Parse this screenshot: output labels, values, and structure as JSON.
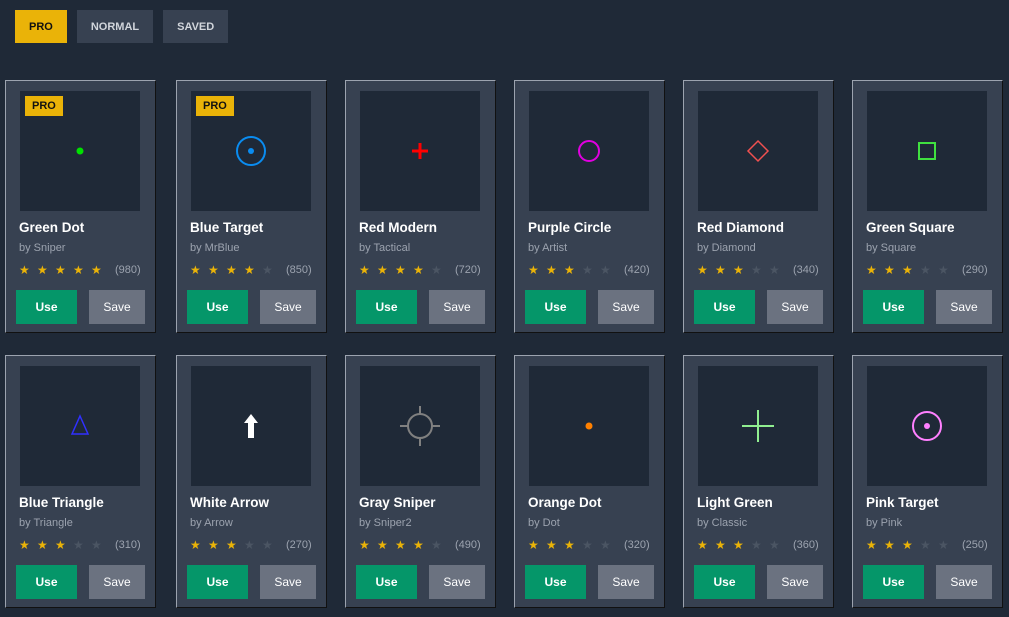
{
  "tabs": [
    {
      "label": "PRO",
      "active": true
    },
    {
      "label": "NORMAL",
      "active": false
    },
    {
      "label": "SAVED",
      "active": false
    }
  ],
  "use_label": "Use",
  "save_label": "Save",
  "pro_badge": "PRO",
  "crosshairs": [
    {
      "name": "Green Dot",
      "author": "by Sniper",
      "stars": 5,
      "count": "(980)",
      "pro": true,
      "shape": "dot",
      "color": "#00e000"
    },
    {
      "name": "Blue Target",
      "author": "by MrBlue",
      "stars": 4,
      "count": "(850)",
      "pro": true,
      "shape": "target",
      "color": "#0a8cf0"
    },
    {
      "name": "Red Modern",
      "author": "by Tactical",
      "stars": 4,
      "count": "(720)",
      "pro": false,
      "shape": "plus",
      "color": "#ff0000"
    },
    {
      "name": "Purple Circle",
      "author": "by Artist",
      "stars": 3,
      "count": "(420)",
      "pro": false,
      "shape": "circle",
      "color": "#e000e0"
    },
    {
      "name": "Red Diamond",
      "author": "by Diamond",
      "stars": 3,
      "count": "(340)",
      "pro": false,
      "shape": "diamond",
      "color": "#f05050"
    },
    {
      "name": "Green Square",
      "author": "by Square",
      "stars": 3,
      "count": "(290)",
      "pro": false,
      "shape": "square",
      "color": "#40e040"
    },
    {
      "name": "Blue Triangle",
      "author": "by Triangle",
      "stars": 3,
      "count": "(310)",
      "pro": false,
      "shape": "triangle",
      "color": "#3030ff"
    },
    {
      "name": "White Arrow",
      "author": "by Arrow",
      "stars": 3,
      "count": "(270)",
      "pro": false,
      "shape": "arrow",
      "color": "#ffffff"
    },
    {
      "name": "Gray Sniper",
      "author": "by Sniper2",
      "stars": 4,
      "count": "(490)",
      "pro": false,
      "shape": "sniper",
      "color": "#808080"
    },
    {
      "name": "Orange Dot",
      "author": "by Dot",
      "stars": 3,
      "count": "(320)",
      "pro": false,
      "shape": "dot",
      "color": "#ff8000"
    },
    {
      "name": "Light Green",
      "author": "by Classic",
      "stars": 3,
      "count": "(360)",
      "pro": false,
      "shape": "cross",
      "color": "#90ee90"
    },
    {
      "name": "Pink Target",
      "author": "by Pink",
      "stars": 3,
      "count": "(250)",
      "pro": false,
      "shape": "target",
      "color": "#ff80ff"
    }
  ]
}
